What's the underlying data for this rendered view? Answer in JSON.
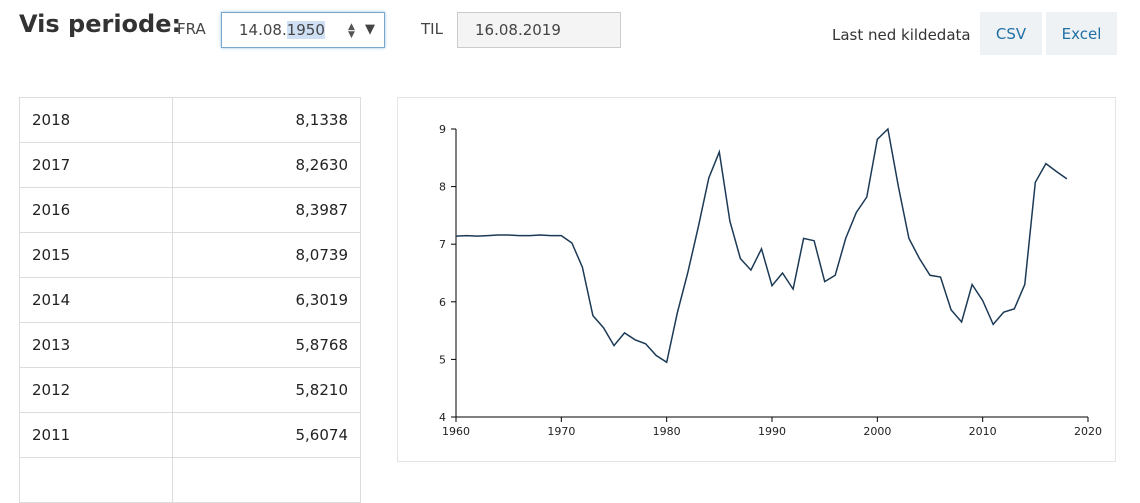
{
  "header": {
    "title": "Vis periode:",
    "from_label": "FRA",
    "from_value_prefix": "14.08.",
    "from_value_selected": "1950",
    "to_label": "TIL",
    "to_value": "16.08.2019",
    "download_label": "Last ned kildedata",
    "csv_label": "CSV",
    "excel_label": "Excel"
  },
  "table": {
    "rows": [
      {
        "year": "2018",
        "value": "8,1338"
      },
      {
        "year": "2017",
        "value": "8,2630"
      },
      {
        "year": "2016",
        "value": "8,3987"
      },
      {
        "year": "2015",
        "value": "8,0739"
      },
      {
        "year": "2014",
        "value": "6,3019"
      },
      {
        "year": "2013",
        "value": "5,8768"
      },
      {
        "year": "2012",
        "value": "5,8210"
      },
      {
        "year": "2011",
        "value": "5,6074"
      }
    ]
  },
  "colors": {
    "line": "#1c3a56",
    "button_text": "#1f6fa4",
    "button_bg": "#eef2f5"
  },
  "chart_data": {
    "type": "line",
    "title": "",
    "xlabel": "",
    "ylabel": "",
    "xlim": [
      1960,
      2020
    ],
    "ylim": [
      4,
      9
    ],
    "x_ticks": [
      1960,
      1970,
      1980,
      1990,
      2000,
      2010,
      2020
    ],
    "y_ticks": [
      4,
      5,
      6,
      7,
      8,
      9
    ],
    "grid": false,
    "series": [
      {
        "x": [
          1960,
          1961,
          1962,
          1963,
          1964,
          1965,
          1966,
          1967,
          1968,
          1969,
          1970,
          1971,
          1972,
          1973,
          1974,
          1975,
          1976,
          1977,
          1978,
          1979,
          1980,
          1981,
          1982,
          1983,
          1984,
          1985,
          1986,
          1987,
          1988,
          1989,
          1990,
          1991,
          1992,
          1993,
          1994,
          1995,
          1996,
          1997,
          1998,
          1999,
          2000,
          2001,
          2002,
          2003,
          2004,
          2005,
          2006,
          2007,
          2008,
          2009,
          2010,
          2011,
          2012,
          2013,
          2014,
          2015,
          2016,
          2017,
          2018
        ],
        "y": [
          7.14,
          7.15,
          7.14,
          7.15,
          7.16,
          7.16,
          7.15,
          7.15,
          7.16,
          7.15,
          7.15,
          7.02,
          6.6,
          5.76,
          5.55,
          5.24,
          5.46,
          5.34,
          5.27,
          5.07,
          4.95,
          5.8,
          6.5,
          7.3,
          8.15,
          8.6,
          7.4,
          6.75,
          6.55,
          6.92,
          6.28,
          6.5,
          6.22,
          7.1,
          7.06,
          6.35,
          6.46,
          7.1,
          7.55,
          7.82,
          8.82,
          9.0,
          8.0,
          7.1,
          6.75,
          6.46,
          6.43,
          5.86,
          5.65,
          6.3,
          6.02,
          5.6074,
          5.821,
          5.8768,
          6.3019,
          8.0739,
          8.3987,
          8.263,
          8.1338
        ]
      }
    ]
  }
}
